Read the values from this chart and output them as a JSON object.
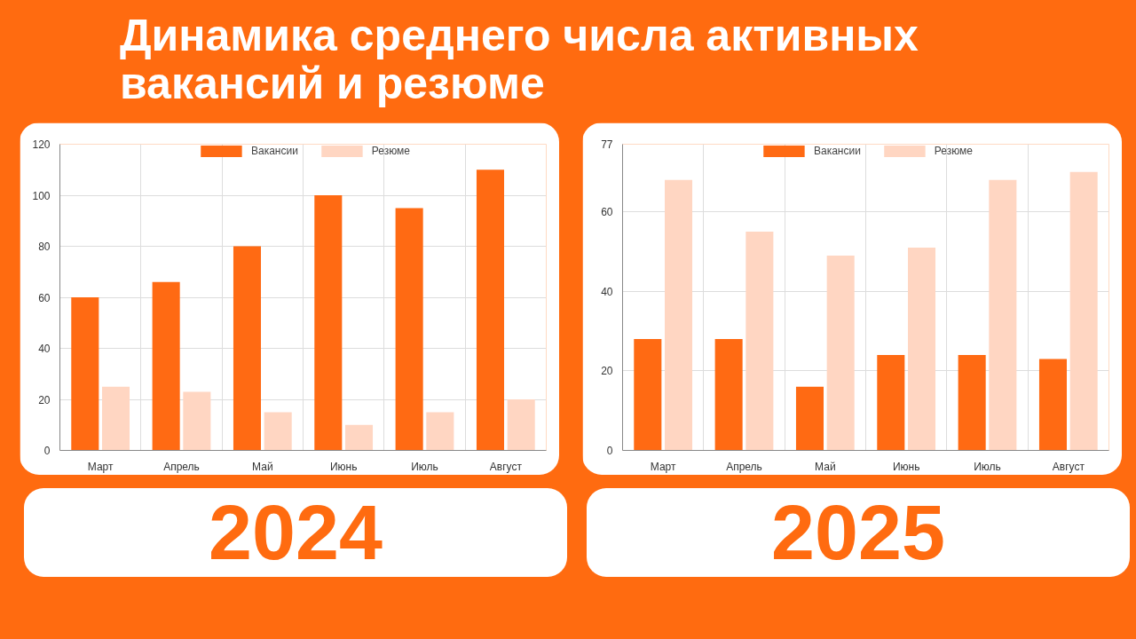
{
  "chart_data": [
    {
      "type": "bar",
      "title": "Динамика среднего числа активных вакансий и резюме",
      "subtitle": "2024",
      "categories": [
        "Март",
        "Апрель",
        "Май",
        "Июнь",
        "Июль",
        "Август"
      ],
      "series": [
        {
          "name": "Вакансии",
          "color": "#ff6a13",
          "values": [
            60,
            66,
            80,
            100,
            95,
            110
          ]
        },
        {
          "name": "Резюме",
          "color": "#ffd6c2",
          "values": [
            25,
            23,
            15,
            10,
            15,
            20
          ]
        }
      ],
      "ylim": [
        0,
        120
      ],
      "yticks": [
        0,
        20,
        40,
        60,
        80,
        100,
        120
      ],
      "grid": true,
      "legend": "top"
    },
    {
      "type": "bar",
      "subtitle": "2025",
      "categories": [
        "Март",
        "Апрель",
        "Май",
        "Июнь",
        "Июль",
        "Август"
      ],
      "series": [
        {
          "name": "Вакансии",
          "color": "#ff6a13",
          "values": [
            28,
            28,
            16,
            24,
            24,
            23
          ]
        },
        {
          "name": "Резюме",
          "color": "#ffd6c2",
          "values": [
            68,
            55,
            49,
            51,
            68,
            70
          ]
        }
      ],
      "ylim": [
        0,
        77
      ],
      "yticks": [
        0,
        20,
        40,
        60,
        77
      ],
      "grid": true,
      "legend": "top"
    }
  ]
}
